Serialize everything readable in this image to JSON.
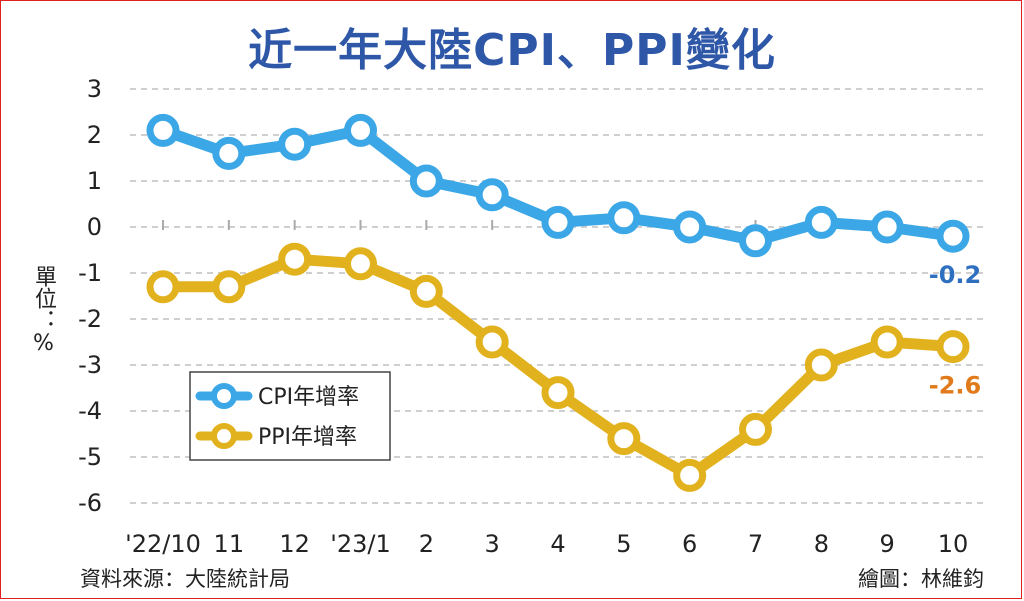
{
  "title": "近一年大陸CPI、PPI變化",
  "unit_label": "單位：%",
  "source": "資料來源：大陸統計局",
  "credit": "繪圖：林維鈞",
  "colors": {
    "cpi": "#3ba7e6",
    "ppi": "#e2b21e",
    "cpi_label": "#2f6fc0",
    "ppi_label": "#e07a1a",
    "grid": "#cfcfcf",
    "title": "#2f57a8"
  },
  "chart_data": {
    "type": "line",
    "title": "近一年大陸CPI、PPI變化",
    "categories": [
      "'22/10",
      "11",
      "12",
      "'23/1",
      "2",
      "3",
      "4",
      "5",
      "6",
      "7",
      "8",
      "9",
      "10"
    ],
    "yticks": [
      "3",
      "2",
      "1",
      "0",
      "-1",
      "-2",
      "-3",
      "-4",
      "-5",
      "-6"
    ],
    "ylim": [
      -6,
      3
    ],
    "grid": true,
    "legend_position": "lower-left",
    "series": [
      {
        "name": "CPI年增率",
        "values": [
          2.1,
          1.6,
          1.8,
          2.1,
          1.0,
          0.7,
          0.1,
          0.2,
          0.0,
          -0.3,
          0.1,
          0.0,
          -0.2
        ],
        "end_label": "-0.2"
      },
      {
        "name": "PPI年增率",
        "values": [
          -1.3,
          -1.3,
          -0.7,
          -0.8,
          -1.4,
          -2.5,
          -3.6,
          -4.6,
          -5.4,
          -4.4,
          -3.0,
          -2.5,
          -2.6
        ],
        "end_label": "-2.6"
      }
    ]
  }
}
